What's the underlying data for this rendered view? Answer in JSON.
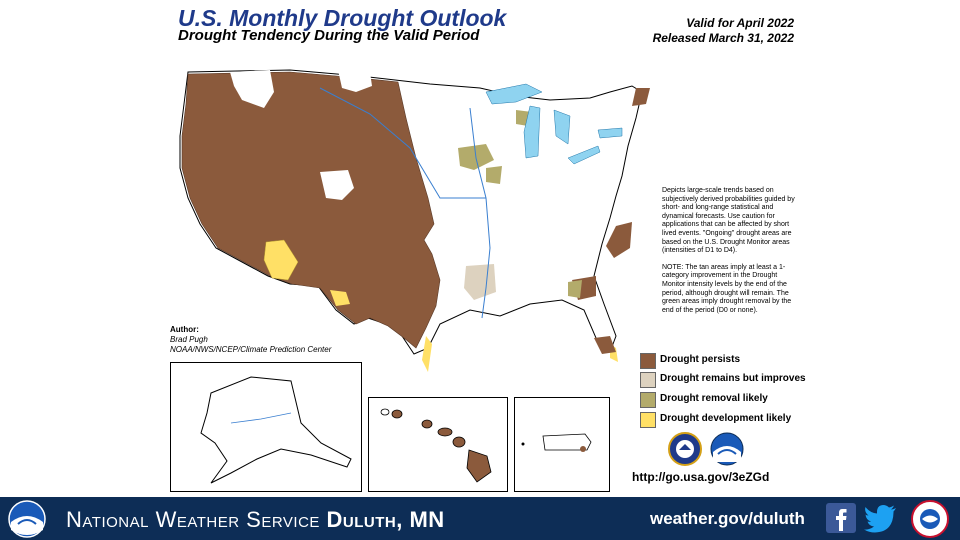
{
  "header": {
    "title": "U.S. Monthly Drought Outlook",
    "subtitle": "Drought Tendency During the Valid Period",
    "valid": "Valid for April 2022",
    "released": "Released March 31, 2022"
  },
  "notes": {
    "para1": "Depicts large-scale trends based on subjectively derived probabilities guided by short- and long-range statistical and dynamical forecasts. Use caution for applications that can be affected by short lived events. \"Ongoing\" drought areas are based on the U.S. Drought Monitor areas (intensities of D1 to D4).",
    "para2": "NOTE: The tan areas imply at least a 1-category improvement in the Drought Monitor intensity levels by the end of the period, although drought will remain. The green areas imply drought removal by the end of the period (D0 or none)."
  },
  "legend": {
    "items": [
      {
        "label": "Drought persists",
        "color": "#8b5a3c"
      },
      {
        "label": "Drought remains but improves",
        "color": "#ddd2bf"
      },
      {
        "label": "Drought removal likely",
        "color": "#b3ab6b"
      },
      {
        "label": "Drought development likely",
        "color": "#ffe066"
      }
    ]
  },
  "author": {
    "heading": "Author:",
    "name": "Brad Pugh",
    "org": "NOAA/NWS/NCEP/Climate Prediction Center"
  },
  "url": "http://go.usa.gov/3eZGd",
  "footer": {
    "prefix": "National Weather Service ",
    "office": "Duluth, MN",
    "website": "weather.gov/duluth",
    "background": "#0d2d56"
  },
  "icons": [
    "noaa-logo-icon",
    "doc-seal-icon",
    "noaa-seal-icon",
    "facebook-icon",
    "twitter-icon",
    "weather-ready-nation-icon"
  ],
  "colors": {
    "persists": "#8b5a3c",
    "improves": "#ddd2bf",
    "removal": "#b3ab6b",
    "development": "#ffe066",
    "water": "#8fd3f0"
  }
}
